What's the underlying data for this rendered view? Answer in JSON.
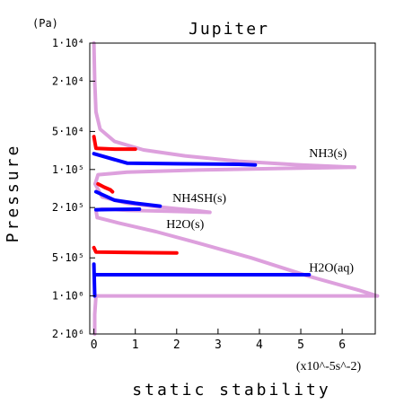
{
  "chart_data": {
    "type": "line",
    "title": "Jupiter",
    "xlabel": "static stability",
    "ylabel": "Pressure",
    "x_unit": "(x10^-5s^-2)",
    "y_unit": "(Pa)",
    "xlim": [
      -0.1,
      6.8
    ],
    "ylim": [
      10000,
      2000000
    ],
    "y_scale": "log",
    "x_ticks": [
      0,
      1,
      2,
      3,
      4,
      5,
      6
    ],
    "x_tick_labels": [
      "0",
      "1",
      "2",
      "3",
      "4",
      "5",
      "6"
    ],
    "y_ticks": [
      10000,
      20000,
      50000,
      100000,
      200000,
      500000,
      1000000,
      2000000
    ],
    "y_tick_labels": [
      "1·10⁴",
      "2·10⁴",
      "5·10⁴",
      "1·10⁵",
      "2·10⁵",
      "5·10⁵",
      "1·10⁶",
      "2·10⁶"
    ],
    "grid": false,
    "annotations": [
      {
        "text": "NH3(s)",
        "x": 5.2,
        "y": 80000
      },
      {
        "text": "NH4SH(s)",
        "x": 1.9,
        "y": 180000
      },
      {
        "text": "H2O(s)",
        "x": 1.75,
        "y": 290000
      },
      {
        "text": "H2O(aq)",
        "x": 5.2,
        "y": 640000
      }
    ],
    "series": [
      {
        "color": "#dda0dd",
        "width": 4,
        "segments": [
          [
            [
              0,
              10000
            ],
            [
              0.02,
              20000
            ],
            [
              0.05,
              35000
            ],
            [
              0.15,
              48000
            ],
            [
              0.5,
              60000
            ],
            [
              1.2,
              70000
            ],
            [
              2.2,
              78000
            ],
            [
              3.5,
              86000
            ],
            [
              5,
              92000
            ],
            [
              6.3,
              96000
            ]
          ],
          [
            [
              6.3,
              96000
            ],
            [
              4.5,
              98000
            ],
            [
              2.5,
              101000
            ],
            [
              0.8,
              105000
            ],
            [
              0.1,
              110000
            ],
            [
              0.03,
              130000
            ]
          ],
          [
            [
              0.03,
              130000
            ],
            [
              0.2,
              165000
            ],
            [
              0.8,
              185000
            ],
            [
              1.6,
              198000
            ],
            [
              2.5,
              212000
            ],
            [
              2.8,
              218000
            ]
          ],
          [
            [
              2.8,
              218000
            ],
            [
              1.8,
              214000
            ],
            [
              0.8,
              210000
            ],
            [
              0.2,
              205000
            ],
            [
              0.05,
              210000
            ],
            [
              0.08,
              240000
            ]
          ],
          [
            [
              0.08,
              240000
            ],
            [
              0.6,
              265000
            ],
            [
              1.5,
              310000
            ],
            [
              2.5,
              380000
            ],
            [
              3.8,
              500000
            ],
            [
              5.2,
              700000
            ],
            [
              6.4,
              900000
            ],
            [
              6.85,
              1000000
            ]
          ],
          [
            [
              6.85,
              1000000
            ],
            [
              5,
              1000000
            ],
            [
              3,
              1000000
            ],
            [
              1,
              1000000
            ],
            [
              0.05,
              1000000
            ]
          ],
          [
            [
              0.05,
              1000000
            ],
            [
              0.02,
              1400000
            ],
            [
              0.02,
              2000000
            ]
          ]
        ]
      },
      {
        "color": "#0000ff",
        "width": 4,
        "segments": [
          [
            [
              0,
              75000
            ],
            [
              0.8,
              89000
            ],
            [
              2,
              90000
            ],
            [
              3.5,
              91000
            ],
            [
              3.9,
              92000
            ]
          ],
          [
            [
              0.05,
              150000
            ],
            [
              0.5,
              175000
            ],
            [
              1,
              185000
            ],
            [
              1.6,
              195000
            ]
          ],
          [
            [
              0.05,
              208000
            ],
            [
              0.5,
              207000
            ],
            [
              1.1,
              206000
            ]
          ],
          [
            [
              0.02,
              680000
            ],
            [
              1,
              680000
            ],
            [
              2.5,
              680000
            ],
            [
              4,
              680000
            ],
            [
              5.2,
              680000
            ]
          ],
          [
            [
              0,
              560000
            ],
            [
              0.02,
              1000000
            ]
          ]
        ]
      },
      {
        "color": "#ff0000",
        "width": 4,
        "segments": [
          [
            [
              0,
              55000
            ],
            [
              0.05,
              68000
            ],
            [
              0.5,
              69000
            ],
            [
              1,
              69000
            ]
          ],
          [
            [
              0.1,
              130000
            ],
            [
              0.25,
              138000
            ],
            [
              0.4,
              145000
            ],
            [
              0.45,
              150000
            ]
          ],
          [
            [
              0,
              415000
            ],
            [
              0.05,
              450000
            ],
            [
              0.7,
              452000
            ],
            [
              1.4,
              455000
            ],
            [
              2,
              457000
            ]
          ]
        ]
      }
    ]
  }
}
